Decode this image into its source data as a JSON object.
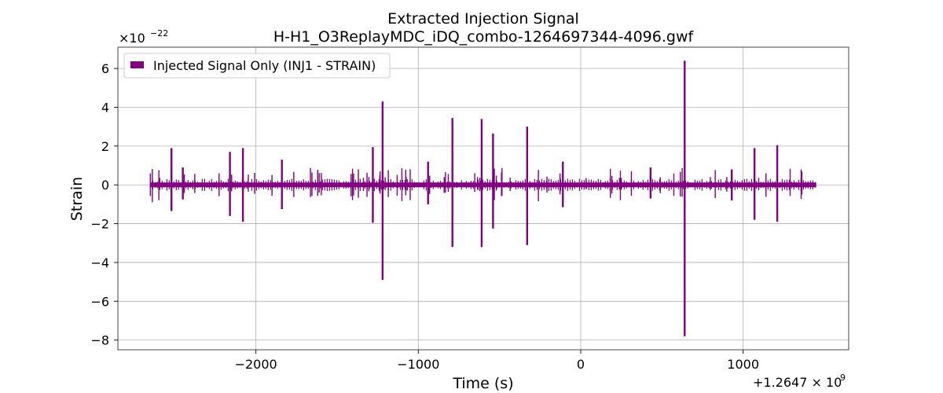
{
  "chart_data": {
    "type": "line",
    "title": "Extracted Injection Signal",
    "subtitle": "H-H1_O3ReplayMDC_iDQ_combo-1264697344-4096.gwf",
    "xlabel": "Time (s)",
    "ylabel": "Strain",
    "x_offset_label": "+1.2647 × 10",
    "x_offset_exponent": "9",
    "y_multiplier_label": "×10",
    "y_multiplier_exponent": "−22",
    "x_ticks": [
      -2000,
      -1000,
      0,
      1000
    ],
    "x_tick_labels": [
      "−2000",
      "−1000",
      "0",
      "1000"
    ],
    "y_ticks": [
      -8,
      -6,
      -4,
      -2,
      0,
      2,
      4,
      6
    ],
    "y_tick_labels": [
      "−8",
      "−6",
      "−4",
      "−2",
      "0",
      "2",
      "4",
      "6"
    ],
    "xlim": [
      -2850,
      1650
    ],
    "ylim": [
      -8.5,
      7.1
    ],
    "grid": true,
    "legend_position": "top-left",
    "series": [
      {
        "name": "Injected Signal Only (INJ1 - STRAIN)",
        "color": "#800080",
        "x_range": [
          -2650,
          1450
        ],
        "baseline_band": [
          -0.12,
          0.12
        ],
        "spikes": [
          {
            "x": -2520,
            "max": 1.9,
            "min": -1.35
          },
          {
            "x": -2450,
            "max": 0.9,
            "min": -0.75
          },
          {
            "x": -2160,
            "max": 1.7,
            "min": -1.6
          },
          {
            "x": -2080,
            "max": 1.9,
            "min": -1.9
          },
          {
            "x": -1840,
            "max": 1.3,
            "min": -1.25
          },
          {
            "x": -1280,
            "max": 1.95,
            "min": -1.95
          },
          {
            "x": -1220,
            "max": 4.3,
            "min": -4.9
          },
          {
            "x": -940,
            "max": 1.2,
            "min": -1.0
          },
          {
            "x": -790,
            "max": 3.45,
            "min": -3.2
          },
          {
            "x": -610,
            "max": 3.4,
            "min": -3.2
          },
          {
            "x": -540,
            "max": 2.65,
            "min": -2.25
          },
          {
            "x": -330,
            "max": 3.0,
            "min": -3.1
          },
          {
            "x": -110,
            "max": 1.2,
            "min": -1.15
          },
          {
            "x": 430,
            "max": 0.9,
            "min": -0.7
          },
          {
            "x": 640,
            "max": 6.4,
            "min": -7.8
          },
          {
            "x": 930,
            "max": 0.8,
            "min": -0.8
          },
          {
            "x": 1070,
            "max": 1.9,
            "min": -1.8
          },
          {
            "x": 1210,
            "max": 2.05,
            "min": -1.9
          }
        ]
      }
    ]
  }
}
